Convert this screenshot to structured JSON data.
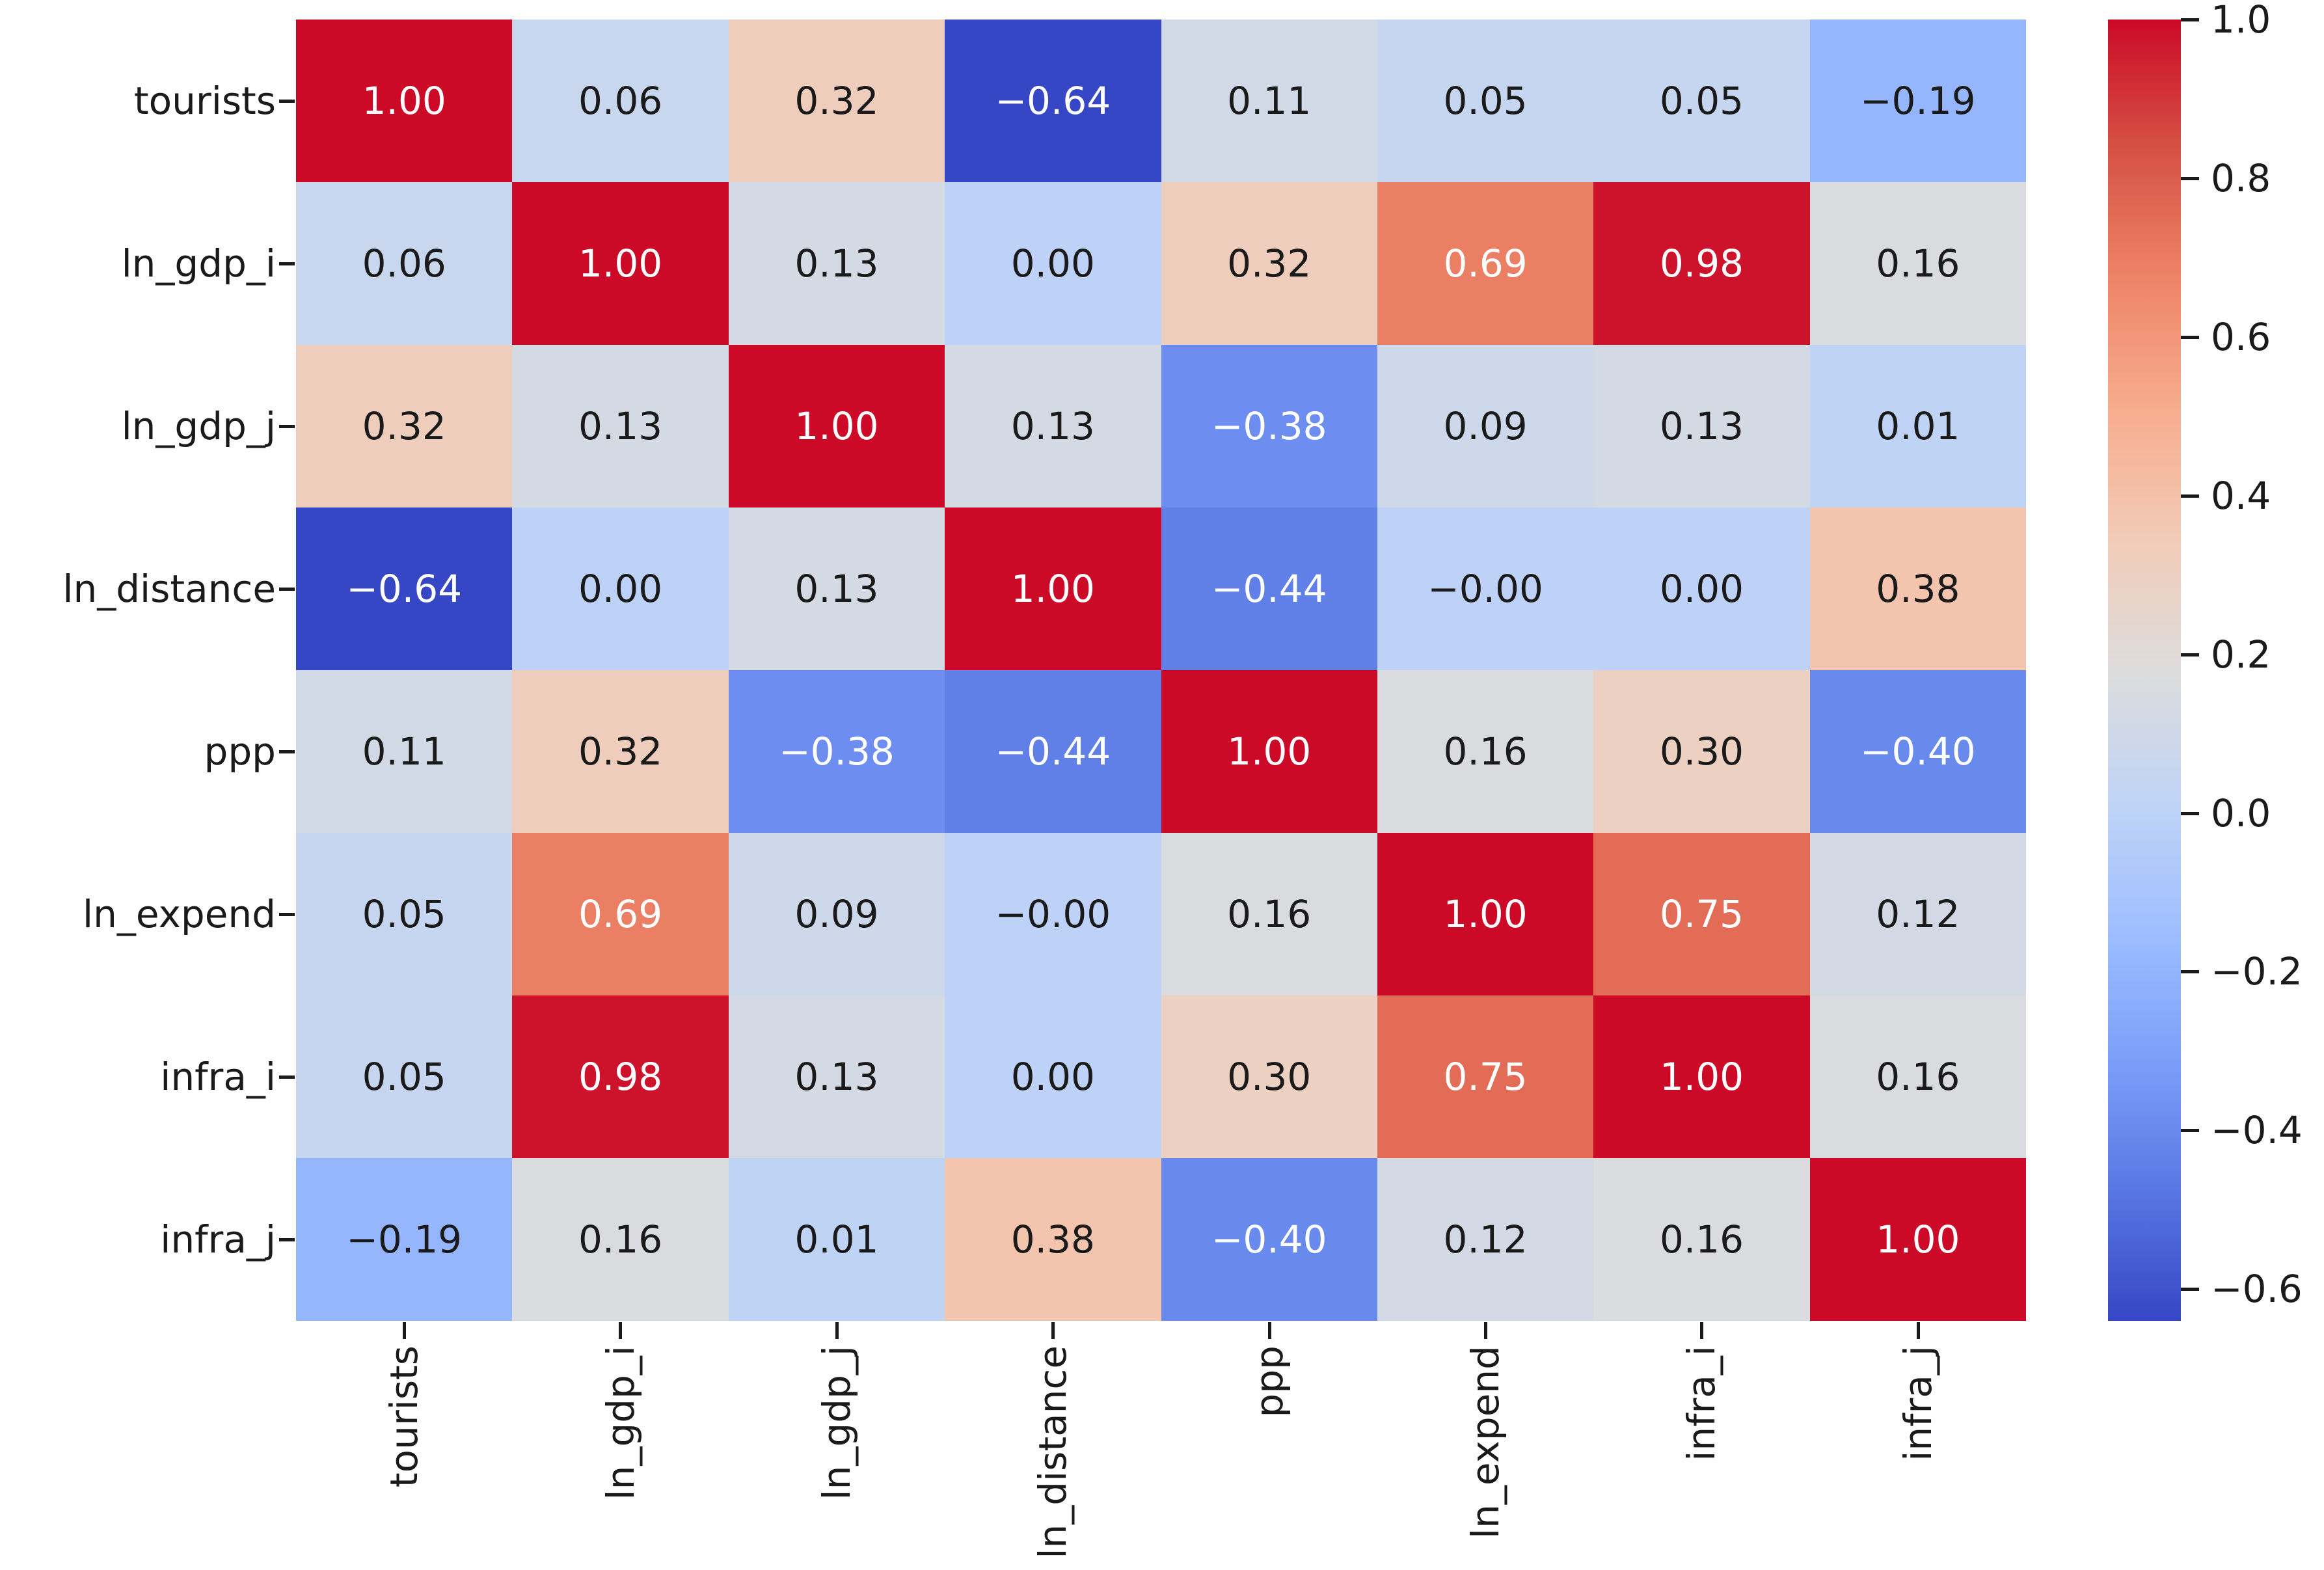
{
  "chart_data": {
    "type": "heatmap",
    "title": "",
    "x_tick_labels": [
      "tourists",
      "ln_gdp_i",
      "ln_gdp_j",
      "ln_distance",
      "ppp",
      "ln_expend",
      "infra_i",
      "infra_j"
    ],
    "y_tick_labels": [
      "tourists",
      "ln_gdp_i",
      "ln_gdp_j",
      "ln_distance",
      "ppp",
      "ln_expend",
      "infra_i",
      "infra_j"
    ],
    "values": [
      [
        1.0,
        0.06,
        0.32,
        -0.64,
        0.11,
        0.05,
        0.05,
        -0.19
      ],
      [
        0.06,
        1.0,
        0.13,
        0.0,
        0.32,
        0.69,
        0.98,
        0.16
      ],
      [
        0.32,
        0.13,
        1.0,
        0.13,
        -0.38,
        0.09,
        0.13,
        0.01
      ],
      [
        -0.64,
        0.0,
        0.13,
        1.0,
        -0.44,
        0.0,
        0.0,
        0.38
      ],
      [
        0.11,
        0.32,
        -0.38,
        -0.44,
        1.0,
        0.16,
        0.3,
        -0.4
      ],
      [
        0.05,
        0.69,
        0.09,
        0.0,
        0.16,
        1.0,
        0.75,
        0.12
      ],
      [
        0.05,
        0.98,
        0.13,
        0.0,
        0.3,
        0.75,
        1.0,
        0.16
      ],
      [
        -0.19,
        0.16,
        0.01,
        0.38,
        -0.4,
        0.12,
        0.16,
        1.0
      ]
    ],
    "annotations": [
      [
        "1.00",
        "0.06",
        "0.32",
        "−0.64",
        "0.11",
        "0.05",
        "0.05",
        "−0.19"
      ],
      [
        "0.06",
        "1.00",
        "0.13",
        "0.00",
        "0.32",
        "0.69",
        "0.98",
        "0.16"
      ],
      [
        "0.32",
        "0.13",
        "1.00",
        "0.13",
        "−0.38",
        "0.09",
        "0.13",
        "0.01"
      ],
      [
        "−0.64",
        "0.00",
        "0.13",
        "1.00",
        "−0.44",
        "−0.00",
        "0.00",
        "0.38"
      ],
      [
        "0.11",
        "0.32",
        "−0.38",
        "−0.44",
        "1.00",
        "0.16",
        "0.30",
        "−0.40"
      ],
      [
        "0.05",
        "0.69",
        "0.09",
        "−0.00",
        "0.16",
        "1.00",
        "0.75",
        "0.12"
      ],
      [
        "0.05",
        "0.98",
        "0.13",
        "0.00",
        "0.30",
        "0.75",
        "1.00",
        "0.16"
      ],
      [
        "−0.19",
        "0.16",
        "0.01",
        "0.38",
        "−0.40",
        "0.12",
        "0.16",
        "1.00"
      ]
    ],
    "colormap": {
      "name": "coolwarm",
      "vmin": -0.64,
      "vmax": 1.0,
      "stops": [
        "#3647c5",
        "#5977e3",
        "#7b9ff9",
        "#9ebeff",
        "#c0d4f5",
        "#dddcdc",
        "#f2cbb7",
        "#f7ac8e",
        "#ee8468",
        "#d65244",
        "#cc0a28"
      ]
    },
    "colorbar": {
      "position": "right",
      "tick_values": [
        1.0,
        0.8,
        0.6,
        0.4,
        0.2,
        0.0,
        -0.2,
        -0.4,
        -0.6
      ],
      "tick_labels": [
        "1.0",
        "0.8",
        "0.6",
        "0.4",
        "0.2",
        "0.0",
        "−0.2",
        "−0.4",
        "−0.6"
      ]
    },
    "annotation_text_colors": {
      "dark": "#1a1a1a",
      "light": "#ffffff"
    },
    "grid": false,
    "legend": false
  }
}
